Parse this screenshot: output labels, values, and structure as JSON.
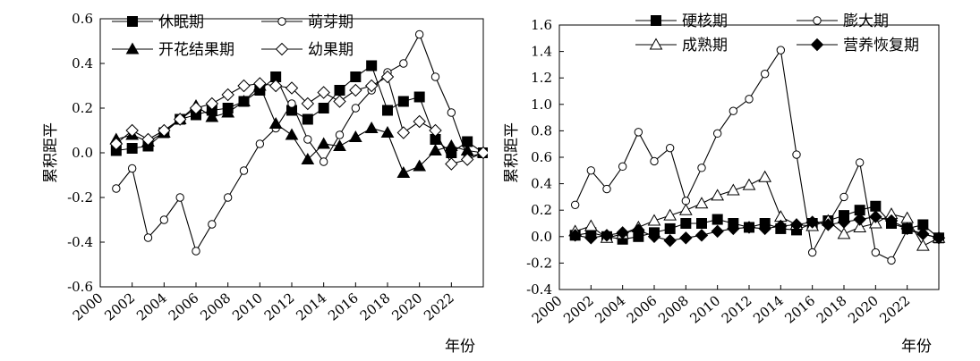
{
  "chart_data": [
    {
      "type": "line",
      "xlabel": "年份",
      "ylabel": "累积距平",
      "xlim": [
        2000,
        2024
      ],
      "ylim": [
        -0.6,
        0.6
      ],
      "xticks": [
        "2000",
        "2002",
        "2004",
        "2006",
        "2008",
        "2010",
        "2012",
        "2014",
        "2016",
        "2018",
        "2020",
        "2022"
      ],
      "yticks": [
        "0.6",
        "0.4",
        "0.2",
        "0.0",
        "-0.2",
        "-0.4",
        "-0.6"
      ],
      "x": [
        2001,
        2002,
        2003,
        2004,
        2005,
        2006,
        2007,
        2008,
        2009,
        2010,
        2011,
        2012,
        2013,
        2014,
        2015,
        2016,
        2017,
        2018,
        2019,
        2020,
        2021,
        2022,
        2023,
        2024
      ],
      "series": [
        {
          "name": "休眠期",
          "marker": "square-filled",
          "values": [
            0.01,
            0.02,
            0.03,
            0.09,
            0.15,
            0.17,
            0.19,
            0.2,
            0.23,
            0.28,
            0.34,
            0.19,
            0.15,
            0.2,
            0.28,
            0.34,
            0.39,
            0.19,
            0.23,
            0.25,
            0.06,
            0.0,
            0.05,
            0.0
          ]
        },
        {
          "name": "萌芽期",
          "marker": "circle-open",
          "values": [
            -0.16,
            -0.07,
            -0.38,
            -0.3,
            -0.2,
            -0.44,
            -0.32,
            -0.2,
            -0.08,
            0.04,
            0.11,
            0.22,
            0.06,
            -0.04,
            0.08,
            0.2,
            0.28,
            0.36,
            0.4,
            0.53,
            0.34,
            0.18,
            -0.02,
            0.0
          ]
        },
        {
          "name": "开花结果期",
          "marker": "triangle-filled",
          "values": [
            0.06,
            0.08,
            0.05,
            0.09,
            0.15,
            0.21,
            0.16,
            0.18,
            0.23,
            0.3,
            0.13,
            0.08,
            -0.03,
            0.04,
            0.03,
            0.07,
            0.11,
            0.09,
            -0.09,
            -0.06,
            0.01,
            0.03,
            0.01,
            0.0
          ]
        },
        {
          "name": "幼果期",
          "marker": "diamond-open",
          "values": [
            0.04,
            0.1,
            0.06,
            0.1,
            0.15,
            0.2,
            0.22,
            0.26,
            0.3,
            0.31,
            0.3,
            0.29,
            0.22,
            0.27,
            0.23,
            0.28,
            0.3,
            0.34,
            0.09,
            0.14,
            0.1,
            -0.05,
            -0.03,
            0.0
          ]
        }
      ]
    },
    {
      "type": "line",
      "xlabel": "年份",
      "ylabel": "累积距平",
      "xlim": [
        2000,
        2024
      ],
      "ylim": [
        -0.4,
        1.6
      ],
      "xticks": [
        "2000",
        "2002",
        "2004",
        "2006",
        "2008",
        "2010",
        "2012",
        "2014",
        "2016",
        "2018",
        "2020",
        "2022"
      ],
      "yticks": [
        "1.6",
        "1.4",
        "1.2",
        "1.0",
        "0.8",
        "0.6",
        "0.4",
        "0.2",
        "0.0",
        "-0.2",
        "-0.4"
      ],
      "x": [
        2001,
        2002,
        2003,
        2004,
        2005,
        2006,
        2007,
        2008,
        2009,
        2010,
        2011,
        2012,
        2013,
        2014,
        2015,
        2016,
        2017,
        2018,
        2019,
        2020,
        2021,
        2022,
        2023,
        2024
      ],
      "series": [
        {
          "name": "硬核期",
          "marker": "square-filled",
          "values": [
            0.01,
            0.03,
            0.0,
            -0.02,
            0.0,
            0.03,
            0.06,
            0.1,
            0.1,
            0.13,
            0.1,
            0.07,
            0.1,
            0.06,
            0.05,
            0.1,
            0.12,
            0.16,
            0.2,
            0.23,
            0.1,
            0.06,
            0.09,
            -0.01
          ]
        },
        {
          "name": "膨大期",
          "marker": "circle-open",
          "values": [
            0.24,
            0.5,
            0.36,
            0.53,
            0.79,
            0.57,
            0.67,
            0.27,
            0.52,
            0.78,
            0.95,
            1.04,
            1.23,
            1.41,
            0.62,
            -0.12,
            0.1,
            0.3,
            0.56,
            -0.12,
            -0.18,
            0.05,
            0.02,
            -0.01
          ]
        },
        {
          "name": "成熟期",
          "marker": "triangle-open",
          "values": [
            0.04,
            0.08,
            -0.01,
            0.02,
            0.07,
            0.12,
            0.16,
            0.2,
            0.25,
            0.31,
            0.35,
            0.39,
            0.45,
            0.15,
            0.09,
            0.08,
            0.12,
            0.02,
            0.07,
            0.1,
            0.17,
            0.14,
            -0.07,
            -0.01
          ]
        },
        {
          "name": "营养恢复期",
          "marker": "diamond-filled",
          "values": [
            0.01,
            -0.01,
            0.01,
            0.03,
            0.05,
            0.0,
            -0.03,
            -0.01,
            0.01,
            0.04,
            0.06,
            0.07,
            0.06,
            0.08,
            0.09,
            0.11,
            0.09,
            0.11,
            0.13,
            0.15,
            0.12,
            0.06,
            0.02,
            -0.01
          ]
        }
      ]
    }
  ]
}
